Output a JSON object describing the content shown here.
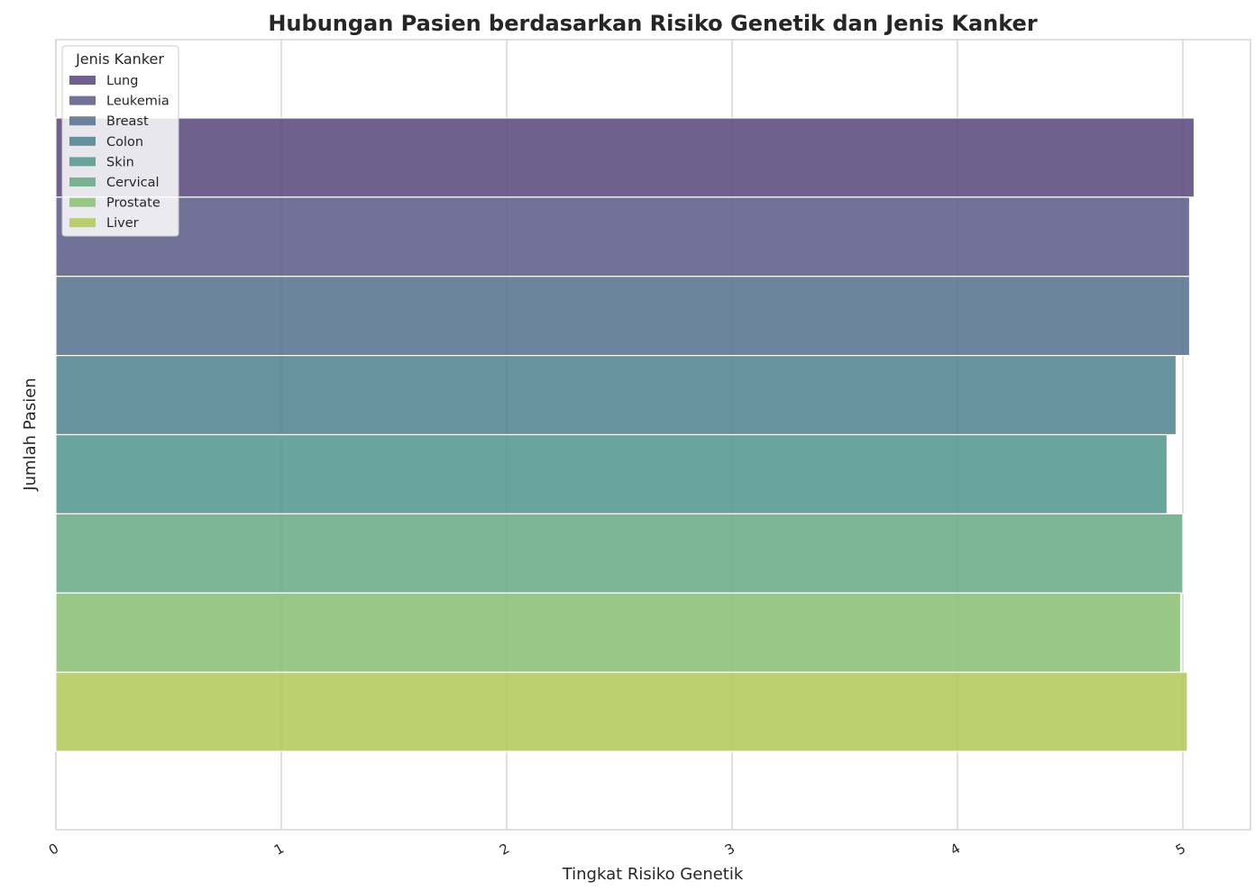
{
  "chart_data": {
    "type": "bar",
    "orientation": "horizontal",
    "title": "Hubungan Pasien berdasarkan Risiko Genetik dan Jenis Kanker",
    "xlabel": "Tingkat Risiko Genetik",
    "ylabel": "Jumlah Pasien",
    "xlim": [
      0,
      5.3
    ],
    "xticks": [
      "0",
      "1",
      "2",
      "3",
      "4",
      "5"
    ],
    "grid": true,
    "legend": {
      "title": "Jenis Kanker",
      "placement": "top-left"
    },
    "categories": [
      "Lung",
      "Leukemia",
      "Breast",
      "Colon",
      "Skin",
      "Cervical",
      "Prostate",
      "Liver"
    ],
    "values": [
      5.05,
      5.03,
      5.03,
      4.97,
      4.93,
      5.0,
      4.99,
      5.02
    ],
    "colors": [
      "#5b4a7e",
      "#5d5f8a",
      "#587390",
      "#518490",
      "#55998f",
      "#6aac88",
      "#8bc075",
      "#b3c95b"
    ]
  }
}
